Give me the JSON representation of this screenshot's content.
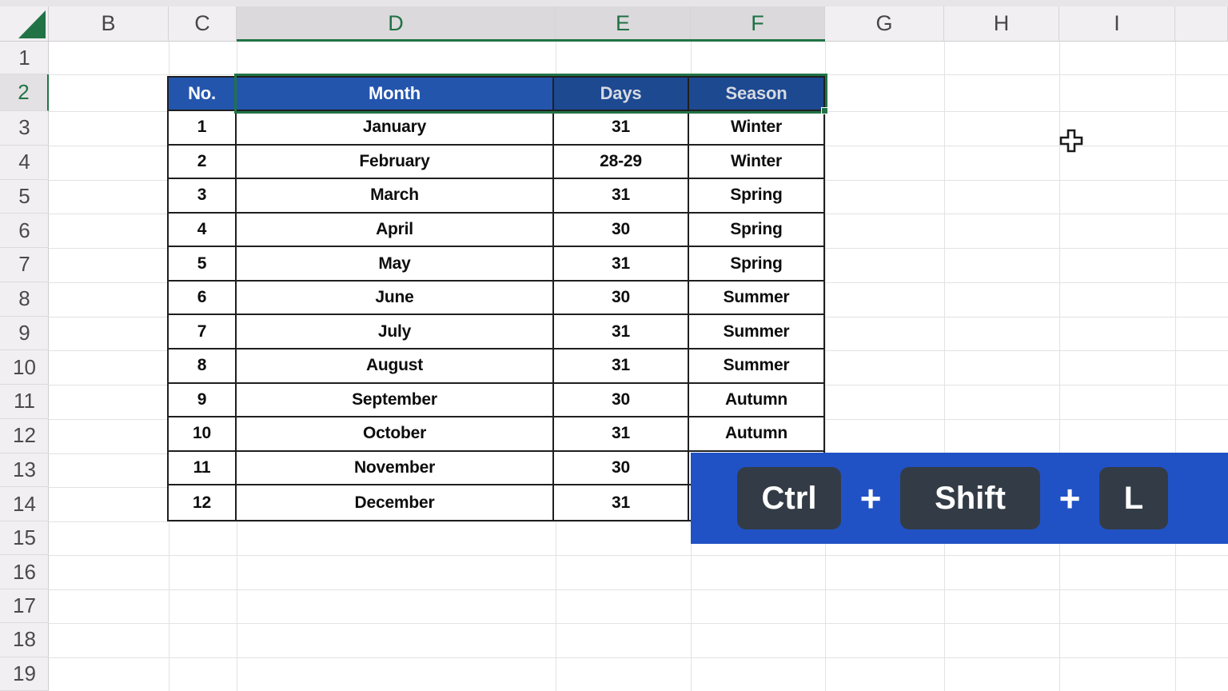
{
  "spreadsheet": {
    "column_headers": [
      "B",
      "C",
      "D",
      "E",
      "F",
      "G",
      "H",
      "I",
      ""
    ],
    "selected_columns": [
      "D",
      "E",
      "F"
    ],
    "row_headers": [
      "1",
      "2",
      "3",
      "4",
      "5",
      "6",
      "7",
      "8",
      "9",
      "10",
      "11",
      "12",
      "13",
      "14",
      "15",
      "16",
      "17",
      "18",
      "19"
    ],
    "selected_row": "2"
  },
  "table": {
    "headers": [
      "No.",
      "Month",
      "Days",
      "Season"
    ],
    "rows": [
      {
        "no": "1",
        "month": "January",
        "days": "31",
        "season": "Winter"
      },
      {
        "no": "2",
        "month": "February",
        "days": "28-29",
        "season": "Winter"
      },
      {
        "no": "3",
        "month": "March",
        "days": "31",
        "season": "Spring"
      },
      {
        "no": "4",
        "month": "April",
        "days": "30",
        "season": "Spring"
      },
      {
        "no": "5",
        "month": "May",
        "days": "31",
        "season": "Spring"
      },
      {
        "no": "6",
        "month": "June",
        "days": "30",
        "season": "Summer"
      },
      {
        "no": "7",
        "month": "July",
        "days": "31",
        "season": "Summer"
      },
      {
        "no": "8",
        "month": "August",
        "days": "31",
        "season": "Summer"
      },
      {
        "no": "9",
        "month": "September",
        "days": "30",
        "season": "Autumn"
      },
      {
        "no": "10",
        "month": "October",
        "days": "31",
        "season": "Autumn"
      },
      {
        "no": "11",
        "month": "November",
        "days": "30",
        "season": ""
      },
      {
        "no": "12",
        "month": "December",
        "days": "31",
        "season": ""
      }
    ]
  },
  "shortcut_overlay": {
    "keys": [
      "Ctrl",
      "Shift",
      "L"
    ],
    "separator": "+"
  },
  "colors": {
    "excel_green": "#217346",
    "header_fill": "#2355ad",
    "header_fill_selected": "#1d4991",
    "banner_blue": "#2152c5",
    "key_bg": "#333c46"
  }
}
